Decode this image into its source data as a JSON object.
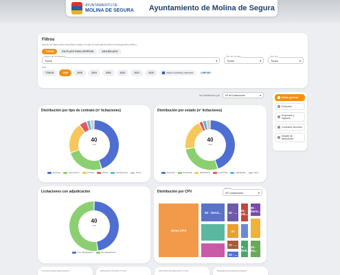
{
  "header": {
    "logo_line1": "AYUNTAMIENTO DE",
    "logo_line2": "MOLINA DE SEGURA",
    "title": "Ayuntamiento de Molina de Segura"
  },
  "filters": {
    "title": "Filtros",
    "subtitle": "Ajusta los filtros para actualizar ningún en que se está generando el presupuesto público...",
    "tabs": [
      {
        "label": "TODOS",
        "active": true
      },
      {
        "label": "EN PLAZO PARA OFERTAR",
        "active": false
      },
      {
        "label": "ADJUDICADO",
        "active": false
      }
    ],
    "selects": [
      {
        "label": "Órgano de contratación",
        "value": "Todos"
      },
      {
        "label": "Tipo de contrato",
        "value": "Todos"
      },
      {
        "label": "Tipo tipo",
        "value": "Todos"
      }
    ],
    "year_label": "Año",
    "years": [
      {
        "label": "TODOS",
        "active": false
      },
      {
        "label": "2026",
        "active": true
      },
      {
        "label": "2025",
        "active": false
      },
      {
        "label": "2024",
        "active": false
      },
      {
        "label": "2023",
        "active": false
      },
      {
        "label": "2022",
        "active": false
      },
      {
        "label": "2021",
        "active": false
      },
      {
        "label": "2020",
        "active": false
      }
    ],
    "checkbox_label": "Incluir contratos menores",
    "clear_label": "LIMPIAR"
  },
  "sort": {
    "label": "Ver distribución por",
    "value": "Nº de licitaciones"
  },
  "nav": [
    {
      "label": "Visión general",
      "active": true
    },
    {
      "label": "Evolución",
      "active": false
    },
    {
      "label": "Empresas y órganos",
      "active": false
    },
    {
      "label": "Contratos menores",
      "active": false
    },
    {
      "label": "Detalle de licitaciones",
      "active": false
    }
  ],
  "colors": {
    "accent": "#f29017",
    "blue": "#4e6fd1",
    "green": "#8ccf73",
    "yellow": "#f6c75a",
    "red": "#e25a5a",
    "teal": "#5fb8d8"
  },
  "chart_data": [
    {
      "type": "pie",
      "title": "Distribución por tipo de contrato (nº licitaciones)",
      "center_value": "40",
      "center_caption": "total",
      "categories": [
        "Servicios",
        "Suministros",
        "Privado",
        "Obras",
        "Gestión/otros",
        "Otros"
      ],
      "values": [
        18,
        10,
        8,
        2,
        1,
        1
      ],
      "colors": [
        "#4e6fd1",
        "#8ccf73",
        "#f6c75a",
        "#e25a5a",
        "#5fb8d8",
        "#cccccc"
      ]
    },
    {
      "type": "pie",
      "title": "Distribución por estado (nº licitaciones)",
      "center_value": "40",
      "center_caption": "total",
      "categories": [
        "Resuelta",
        "Publicada",
        "Evaluación",
        "Anunciada",
        "Adjudicada",
        "Otros"
      ],
      "values": [
        18,
        11,
        8,
        1,
        1,
        1
      ],
      "colors": [
        "#4e6fd1",
        "#8ccf73",
        "#f6c75a",
        "#e25a5a",
        "#5fb8d8",
        "#cccccc"
      ]
    },
    {
      "type": "pie",
      "title": "Licitaciones con adjudicación",
      "center_value": "40",
      "center_caption": "total",
      "categories": [
        "Con adjudicación",
        "Sin adjudicación"
      ],
      "values": [
        19,
        21
      ],
      "colors": [
        "#4e6fd1",
        "#8ccf73"
      ]
    }
  ],
  "treemap": {
    "title": "Distribución por CPV",
    "select_label": "Métrica",
    "select_value": "Nº Licitaciones",
    "cells": [
      {
        "label": "Otros CPV",
        "color": "#f29a4a"
      },
      {
        "label": "92 - Servi...",
        "color": "#5a72c8"
      },
      {
        "label": "32 - ...",
        "color": "#6d5aa8"
      },
      {
        "label": "79 - Medi...",
        "color": "#4aa56a"
      },
      {
        "label": "72 - ...",
        "color": "#a65a3a"
      },
      {
        "label": "15 - Alk...",
        "color": "#c2463a"
      },
      {
        "label": "39 - Servi...",
        "color": "#7a4aa8"
      },
      {
        "label": "33 - ...",
        "color": "#4e6fd1"
      },
      {
        "label": "34 - Eq...",
        "color": "#6aa85a"
      },
      {
        "label": "31",
        "color": "#e8a030"
      },
      {
        "label": "",
        "color": "#5ab8a0"
      },
      {
        "label": "",
        "color": "#f0b23a"
      },
      {
        "label": "",
        "color": "#c85aa8"
      },
      {
        "label": "",
        "color": "#6a8ad8"
      }
    ]
  },
  "kpis": [
    {
      "label": "LICITACIONES REALIZADAS"
    },
    {
      "label": "IMPORTE LICITADO TOTAL"
    },
    {
      "label": "IMPORTE ADJUDICADO TOTAL"
    },
    {
      "label": "EMPRESAS ADJUDICATARIAS"
    }
  ]
}
